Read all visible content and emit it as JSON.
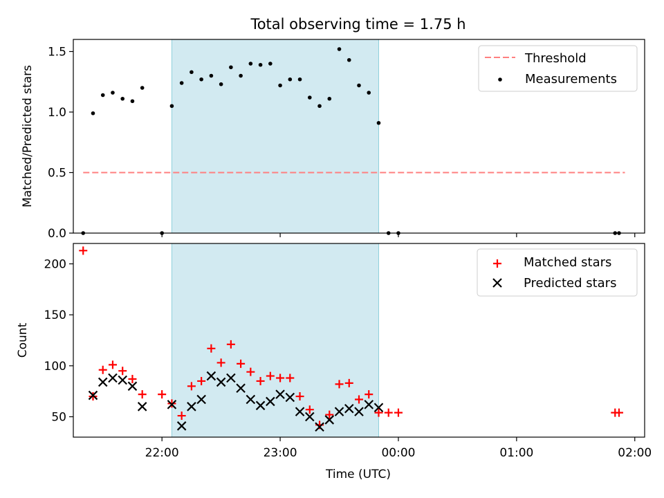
{
  "chart_data": {
    "type": "scatter",
    "title": "Total observing time = 1.75 h",
    "xlabel": "Time (UTC)",
    "xlim": [
      "21:15",
      "02:05"
    ],
    "xticks": [
      "22:00",
      "23:00",
      "00:00",
      "01:00",
      "02:00"
    ],
    "shaded_region": {
      "start": "22:05",
      "end": "23:50",
      "color": "#add8e6"
    },
    "panels": [
      {
        "ylabel": "Matched/Predicted stars",
        "ylim": [
          0,
          1.6
        ],
        "yticks": [
          "0.0",
          "0.5",
          "1.0",
          "1.5"
        ],
        "legend": "top-right",
        "threshold": {
          "name": "Threshold",
          "value": 0.5,
          "x_start": "21:20",
          "x_end": "01:55",
          "color": "#ff7f7f"
        },
        "series": [
          {
            "name": "Measurements",
            "marker": "dot",
            "color": "#000000",
            "points": [
              [
                "21:20",
                0.0
              ],
              [
                "21:25",
                0.99
              ],
              [
                "21:30",
                1.14
              ],
              [
                "21:35",
                1.16
              ],
              [
                "21:40",
                1.11
              ],
              [
                "21:45",
                1.09
              ],
              [
                "21:50",
                1.2
              ],
              [
                "22:00",
                0.0
              ],
              [
                "22:05",
                1.05
              ],
              [
                "22:10",
                1.24
              ],
              [
                "22:15",
                1.33
              ],
              [
                "22:20",
                1.27
              ],
              [
                "22:25",
                1.3
              ],
              [
                "22:30",
                1.23
              ],
              [
                "22:35",
                1.37
              ],
              [
                "22:40",
                1.3
              ],
              [
                "22:45",
                1.4
              ],
              [
                "22:50",
                1.39
              ],
              [
                "22:55",
                1.4
              ],
              [
                "23:00",
                1.22
              ],
              [
                "23:05",
                1.27
              ],
              [
                "23:10",
                1.27
              ],
              [
                "23:15",
                1.12
              ],
              [
                "23:20",
                1.05
              ],
              [
                "23:25",
                1.11
              ],
              [
                "23:30",
                1.52
              ],
              [
                "23:35",
                1.43
              ],
              [
                "23:40",
                1.22
              ],
              [
                "23:45",
                1.16
              ],
              [
                "23:50",
                0.91
              ],
              [
                "23:55",
                0.0
              ],
              [
                "00:00",
                0.0
              ],
              [
                "01:50",
                0.0
              ],
              [
                "01:52",
                0.0
              ]
            ]
          }
        ]
      },
      {
        "ylabel": "Count",
        "ylim": [
          30,
          220
        ],
        "yticks": [
          "50",
          "100",
          "150",
          "200"
        ],
        "legend": "top-right",
        "series": [
          {
            "name": "Matched stars",
            "marker": "plus",
            "color": "#ff0000",
            "points": [
              [
                "21:20",
                213
              ],
              [
                "21:25",
                70
              ],
              [
                "21:30",
                96
              ],
              [
                "21:35",
                101
              ],
              [
                "21:40",
                95
              ],
              [
                "21:45",
                87
              ],
              [
                "21:50",
                72
              ],
              [
                "22:00",
                72
              ],
              [
                "22:05",
                63
              ],
              [
                "22:10",
                51
              ],
              [
                "22:15",
                80
              ],
              [
                "22:20",
                85
              ],
              [
                "22:25",
                117
              ],
              [
                "22:30",
                103
              ],
              [
                "22:35",
                121
              ],
              [
                "22:40",
                102
              ],
              [
                "22:45",
                94
              ],
              [
                "22:50",
                85
              ],
              [
                "22:55",
                90
              ],
              [
                "23:00",
                88
              ],
              [
                "23:05",
                88
              ],
              [
                "23:10",
                70
              ],
              [
                "23:15",
                57
              ],
              [
                "23:20",
                42
              ],
              [
                "23:25",
                52
              ],
              [
                "23:30",
                82
              ],
              [
                "23:35",
                83
              ],
              [
                "23:40",
                67
              ],
              [
                "23:45",
                72
              ],
              [
                "23:50",
                54
              ],
              [
                "23:55",
                54
              ],
              [
                "00:00",
                54
              ],
              [
                "01:50",
                54
              ],
              [
                "01:52",
                54
              ]
            ]
          },
          {
            "name": "Predicted stars",
            "marker": "x",
            "color": "#000000",
            "points": [
              [
                "21:25",
                71
              ],
              [
                "21:30",
                84
              ],
              [
                "21:35",
                88
              ],
              [
                "21:40",
                86
              ],
              [
                "21:45",
                80
              ],
              [
                "21:50",
                60
              ],
              [
                "22:05",
                62
              ],
              [
                "22:10",
                41
              ],
              [
                "22:15",
                60
              ],
              [
                "22:20",
                67
              ],
              [
                "22:25",
                90
              ],
              [
                "22:30",
                84
              ],
              [
                "22:35",
                88
              ],
              [
                "22:40",
                78
              ],
              [
                "22:45",
                67
              ],
              [
                "22:50",
                61
              ],
              [
                "22:55",
                65
              ],
              [
                "23:00",
                72
              ],
              [
                "23:05",
                69
              ],
              [
                "23:10",
                55
              ],
              [
                "23:15",
                50
              ],
              [
                "23:20",
                40
              ],
              [
                "23:25",
                47
              ],
              [
                "23:30",
                55
              ],
              [
                "23:35",
                58
              ],
              [
                "23:40",
                55
              ],
              [
                "23:45",
                62
              ],
              [
                "23:50",
                59
              ]
            ]
          }
        ]
      }
    ]
  }
}
